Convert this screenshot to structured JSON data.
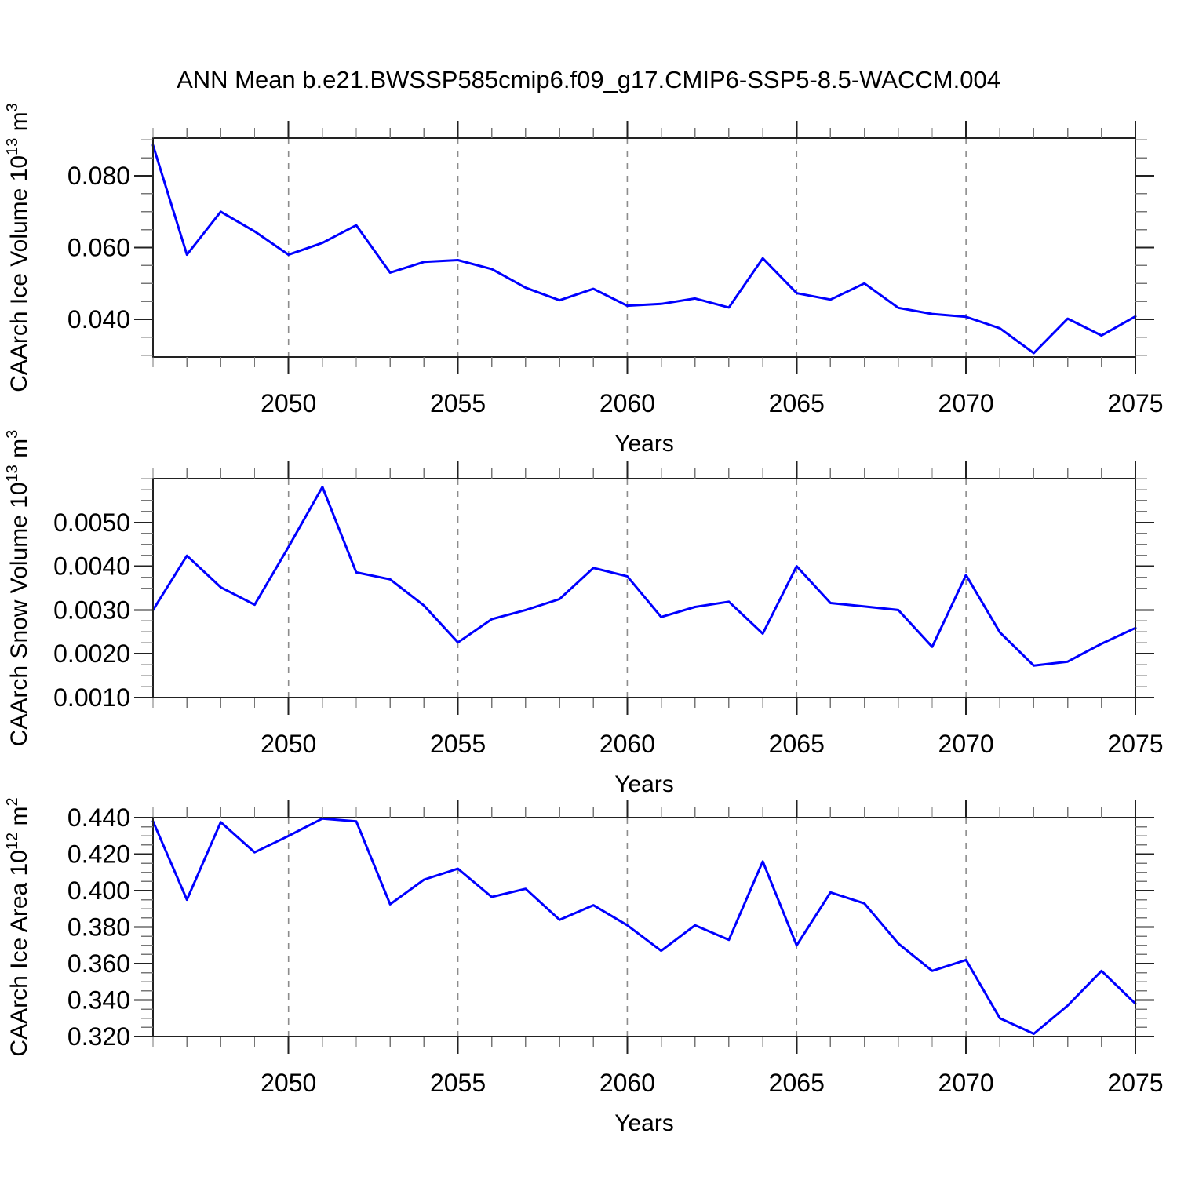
{
  "title": "ANN Mean b.e21.BWSSP585cmip6.f09_g17.CMIP6-SSP5-8.5-WACCM.004",
  "style": {
    "line_color": "#0000ff",
    "axis_color": "#222222",
    "minor_tick_color": "#777777",
    "grid_color": "#8c8c8c",
    "text_color": "#000000",
    "background": "#ffffff"
  },
  "chart_data": [
    {
      "id": "ice-volume",
      "type": "line",
      "title": "",
      "xlabel": "Years",
      "ylabel": "CAArch Ice Volume 10^13 m^3",
      "ylabel_runs": [
        {
          "t": "CAArch Ice Volume 10"
        },
        {
          "t": "13",
          "sup": true
        },
        {
          "t": " m"
        },
        {
          "t": "3",
          "sup": true
        }
      ],
      "x": [
        2046,
        2047,
        2048,
        2049,
        2050,
        2051,
        2052,
        2053,
        2054,
        2055,
        2056,
        2057,
        2058,
        2059,
        2060,
        2061,
        2062,
        2063,
        2064,
        2065,
        2066,
        2067,
        2068,
        2069,
        2070,
        2071,
        2072,
        2073,
        2074,
        2075
      ],
      "values": [
        0.0885,
        0.058,
        0.07,
        0.0645,
        0.058,
        0.0613,
        0.0662,
        0.053,
        0.056,
        0.0565,
        0.054,
        0.0488,
        0.0453,
        0.0485,
        0.0438,
        0.0443,
        0.0458,
        0.0433,
        0.057,
        0.0473,
        0.0455,
        0.05,
        0.0432,
        0.0415,
        0.0407,
        0.0375,
        0.0306,
        0.0402,
        0.0355,
        0.0408
      ],
      "xlim": [
        2046,
        2075
      ],
      "ylim": [
        0.0295,
        0.0905
      ],
      "xticks_major": [
        2050,
        2055,
        2060,
        2065,
        2070,
        2075
      ],
      "xtick_labels": [
        "2050",
        "2055",
        "2060",
        "2065",
        "2070",
        "2075"
      ],
      "xtick_minor_step": 1,
      "yticks_major": [
        0.04,
        0.06,
        0.08
      ],
      "ytick_labels": [
        "0.040",
        "0.060",
        "0.080"
      ],
      "ytick_minor": {
        "start": 0.03,
        "step": 0.005,
        "end": 0.09
      },
      "gridlines_x": [
        2050,
        2055,
        2060,
        2065,
        2070
      ],
      "grid": "vertical-dashed",
      "legend": "none"
    },
    {
      "id": "snow-volume",
      "type": "line",
      "title": "",
      "xlabel": "Years",
      "ylabel": "CAArch Snow Volume 10^13 m^3",
      "ylabel_runs": [
        {
          "t": "CAArch Snow Volume 10"
        },
        {
          "t": "13",
          "sup": true
        },
        {
          "t": " m"
        },
        {
          "t": "3",
          "sup": true
        }
      ],
      "x": [
        2046,
        2047,
        2048,
        2049,
        2050,
        2051,
        2052,
        2053,
        2054,
        2055,
        2056,
        2057,
        2058,
        2059,
        2060,
        2061,
        2062,
        2063,
        2064,
        2065,
        2066,
        2067,
        2068,
        2069,
        2070,
        2071,
        2072,
        2073,
        2074,
        2075
      ],
      "values": [
        0.003,
        0.00424,
        0.00352,
        0.00312,
        0.00444,
        0.00581,
        0.00386,
        0.0037,
        0.0031,
        0.00226,
        0.00279,
        0.003,
        0.00325,
        0.00396,
        0.00377,
        0.00284,
        0.00307,
        0.00319,
        0.00246,
        0.004,
        0.00316,
        0.00308,
        0.003,
        0.00216,
        0.0038,
        0.00249,
        0.00173,
        0.00182,
        0.00223,
        0.00259
      ],
      "xlim": [
        2046,
        2075
      ],
      "ylim": [
        0.001,
        0.006
      ],
      "xticks_major": [
        2050,
        2055,
        2060,
        2065,
        2070,
        2075
      ],
      "xtick_labels": [
        "2050",
        "2055",
        "2060",
        "2065",
        "2070",
        "2075"
      ],
      "xtick_minor_step": 1,
      "yticks_major": [
        0.001,
        0.002,
        0.003,
        0.004,
        0.005
      ],
      "ytick_labels": [
        "0.0010",
        "0.0020",
        "0.0030",
        "0.0040",
        "0.0050"
      ],
      "ytick_minor": {
        "start": 0.001,
        "step": 0.00025,
        "end": 0.006
      },
      "gridlines_x": [
        2050,
        2055,
        2060,
        2065,
        2070
      ],
      "grid": "vertical-dashed",
      "legend": "none"
    },
    {
      "id": "ice-area",
      "type": "line",
      "title": "",
      "xlabel": "Years",
      "ylabel": "CAArch Ice Area 10^12 m^2",
      "ylabel_runs": [
        {
          "t": "CAArch Ice Area 10"
        },
        {
          "t": "12",
          "sup": true
        },
        {
          "t": " m"
        },
        {
          "t": "2",
          "sup": true
        }
      ],
      "x": [
        2046,
        2047,
        2048,
        2049,
        2050,
        2051,
        2052,
        2053,
        2054,
        2055,
        2056,
        2057,
        2058,
        2059,
        2060,
        2061,
        2062,
        2063,
        2064,
        2065,
        2066,
        2067,
        2068,
        2069,
        2070,
        2071,
        2072,
        2073,
        2074,
        2075
      ],
      "values": [
        0.438,
        0.395,
        0.4375,
        0.421,
        0.43,
        0.4395,
        0.438,
        0.3925,
        0.406,
        0.412,
        0.3965,
        0.401,
        0.384,
        0.392,
        0.381,
        0.367,
        0.381,
        0.373,
        0.416,
        0.37,
        0.399,
        0.393,
        0.371,
        0.356,
        0.362,
        0.33,
        0.3215,
        0.337,
        0.356,
        0.338
      ],
      "xlim": [
        2046,
        2075
      ],
      "ylim": [
        0.32,
        0.44
      ],
      "xticks_major": [
        2050,
        2055,
        2060,
        2065,
        2070,
        2075
      ],
      "xtick_labels": [
        "2050",
        "2055",
        "2060",
        "2065",
        "2070",
        "2075"
      ],
      "xtick_minor_step": 1,
      "yticks_major": [
        0.32,
        0.34,
        0.36,
        0.38,
        0.4,
        0.42,
        0.44
      ],
      "ytick_labels": [
        "0.320",
        "0.340",
        "0.360",
        "0.380",
        "0.400",
        "0.420",
        "0.440"
      ],
      "ytick_minor": {
        "start": 0.32,
        "step": 0.005,
        "end": 0.44
      },
      "gridlines_x": [
        2050,
        2055,
        2060,
        2065,
        2070
      ],
      "grid": "vertical-dashed",
      "legend": "none"
    }
  ]
}
